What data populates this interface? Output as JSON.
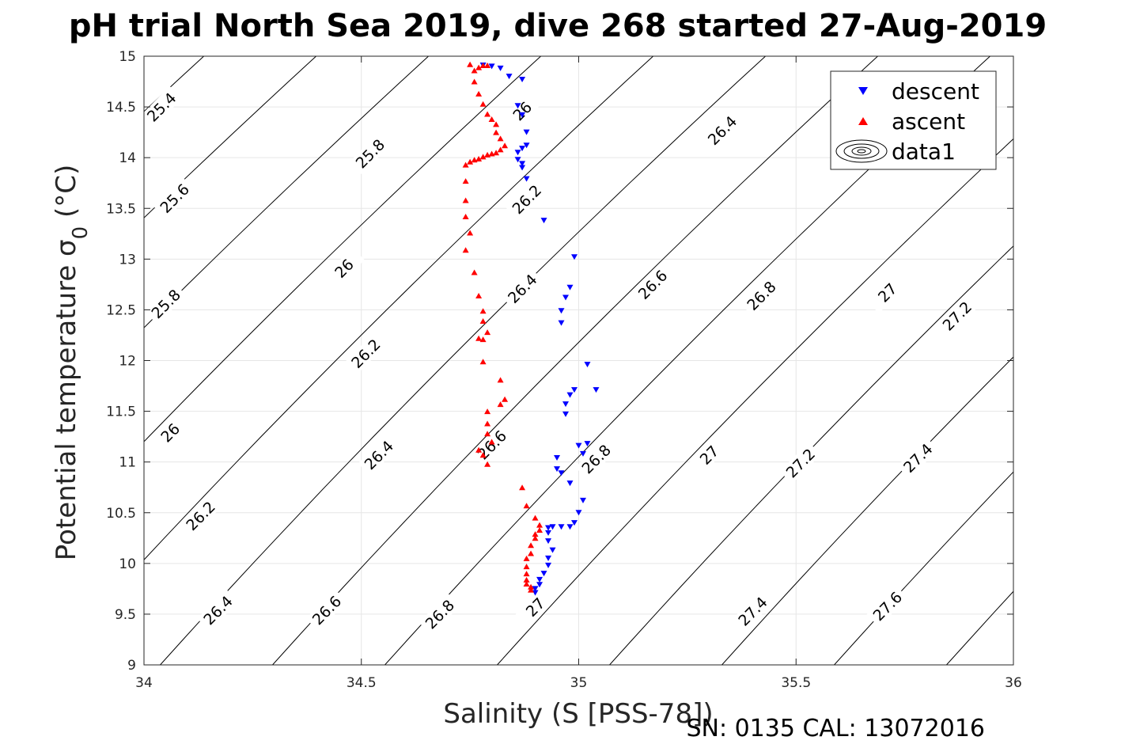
{
  "chart_data": {
    "type": "scatter",
    "title": "pH trial North Sea 2019, dive 268 started 27-Aug-2019",
    "xlabel": "Salinity (S [PSS-78])",
    "ylabel": "Potential temperature σ",
    "ylabel_sub": "0",
    "ylabel_unit": " (°C)",
    "footer": "SN: 0135  CAL: 13072016",
    "xlim": [
      34,
      36
    ],
    "ylim": [
      9,
      15
    ],
    "xticks": [
      34,
      34.5,
      35,
      35.5,
      36
    ],
    "xtick_labels": [
      "34",
      "34.5",
      "35",
      "35.5",
      "36"
    ],
    "yticks": [
      9,
      9.5,
      10,
      10.5,
      11,
      11.5,
      12,
      12.5,
      13,
      13.5,
      14,
      14.5,
      15
    ],
    "ytick_labels": [
      "9",
      "9.5",
      "10",
      "10.5",
      "11",
      "11.5",
      "12",
      "12.5",
      "13",
      "13.5",
      "14",
      "14.5",
      "15"
    ],
    "grid": true,
    "legend_position": "top-right",
    "legend": [
      "descent",
      "ascent",
      "data1"
    ],
    "series": [
      {
        "name": "descent",
        "color": "#0000ff",
        "marker": "triangle-down",
        "points": [
          [
            34.78,
            14.91
          ],
          [
            34.8,
            14.9
          ],
          [
            34.82,
            14.88
          ],
          [
            34.84,
            14.8
          ],
          [
            34.87,
            14.77
          ],
          [
            34.86,
            14.51
          ],
          [
            34.87,
            14.42
          ],
          [
            34.88,
            14.25
          ],
          [
            34.88,
            14.12
          ],
          [
            34.87,
            14.09
          ],
          [
            34.86,
            14.05
          ],
          [
            34.86,
            13.98
          ],
          [
            34.87,
            13.94
          ],
          [
            34.87,
            13.9
          ],
          [
            34.88,
            13.79
          ],
          [
            34.92,
            13.38
          ],
          [
            34.99,
            13.02
          ],
          [
            34.98,
            12.72
          ],
          [
            34.97,
            12.62
          ],
          [
            34.96,
            12.49
          ],
          [
            34.96,
            12.37
          ],
          [
            35.02,
            11.96
          ],
          [
            34.99,
            11.71
          ],
          [
            35.04,
            11.71
          ],
          [
            34.98,
            11.66
          ],
          [
            34.97,
            11.57
          ],
          [
            34.97,
            11.47
          ],
          [
            35.02,
            11.18
          ],
          [
            35.0,
            11.16
          ],
          [
            35.01,
            11.08
          ],
          [
            34.95,
            11.04
          ],
          [
            34.95,
            10.93
          ],
          [
            34.96,
            10.89
          ],
          [
            34.98,
            10.79
          ],
          [
            35.01,
            10.62
          ],
          [
            35.0,
            10.5
          ],
          [
            34.99,
            10.4
          ],
          [
            34.98,
            10.36
          ],
          [
            34.96,
            10.36
          ],
          [
            34.94,
            10.36
          ],
          [
            34.93,
            10.35
          ],
          [
            34.93,
            10.3
          ],
          [
            34.93,
            10.22
          ],
          [
            34.94,
            10.13
          ],
          [
            34.93,
            10.05
          ],
          [
            34.93,
            9.98
          ],
          [
            34.92,
            9.9
          ],
          [
            34.91,
            9.84
          ],
          [
            34.91,
            9.79
          ],
          [
            34.9,
            9.75
          ],
          [
            34.9,
            9.71
          ]
        ]
      },
      {
        "name": "ascent",
        "color": "#ff0000",
        "marker": "triangle-up",
        "points": [
          [
            34.89,
            9.74
          ],
          [
            34.89,
            9.77
          ],
          [
            34.88,
            9.8
          ],
          [
            34.88,
            9.84
          ],
          [
            34.88,
            9.9
          ],
          [
            34.88,
            9.97
          ],
          [
            34.88,
            10.05
          ],
          [
            34.89,
            10.1
          ],
          [
            34.89,
            10.18
          ],
          [
            34.9,
            10.25
          ],
          [
            34.9,
            10.29
          ],
          [
            34.91,
            10.33
          ],
          [
            34.91,
            10.38
          ],
          [
            34.9,
            10.45
          ],
          [
            34.88,
            10.57
          ],
          [
            34.87,
            10.75
          ],
          [
            34.79,
            10.98
          ],
          [
            34.78,
            11.07
          ],
          [
            34.77,
            11.12
          ],
          [
            34.8,
            11.2
          ],
          [
            34.79,
            11.28
          ],
          [
            34.79,
            11.38
          ],
          [
            34.79,
            11.5
          ],
          [
            34.82,
            11.57
          ],
          [
            34.83,
            11.62
          ],
          [
            34.82,
            11.81
          ],
          [
            34.78,
            11.99
          ],
          [
            34.78,
            12.21
          ],
          [
            34.77,
            12.22
          ],
          [
            34.79,
            12.28
          ],
          [
            34.78,
            12.39
          ],
          [
            34.78,
            12.49
          ],
          [
            34.77,
            12.64
          ],
          [
            34.76,
            12.87
          ],
          [
            34.74,
            13.09
          ],
          [
            34.75,
            13.26
          ],
          [
            34.74,
            13.42
          ],
          [
            34.74,
            13.58
          ],
          [
            34.74,
            13.77
          ],
          [
            34.74,
            13.93
          ],
          [
            34.75,
            13.96
          ],
          [
            34.76,
            13.98
          ],
          [
            34.77,
            13.99
          ],
          [
            34.78,
            14.01
          ],
          [
            34.79,
            14.03
          ],
          [
            34.8,
            14.04
          ],
          [
            34.81,
            14.05
          ],
          [
            34.82,
            14.08
          ],
          [
            34.83,
            14.12
          ],
          [
            34.82,
            14.19
          ],
          [
            34.81,
            14.25
          ],
          [
            34.81,
            14.33
          ],
          [
            34.8,
            14.38
          ],
          [
            34.79,
            14.43
          ],
          [
            34.78,
            14.53
          ],
          [
            34.77,
            14.63
          ],
          [
            34.76,
            14.75
          ],
          [
            34.76,
            14.86
          ],
          [
            34.77,
            14.89
          ],
          [
            34.78,
            14.91
          ],
          [
            34.79,
            14.91
          ],
          [
            34.75,
            14.92
          ]
        ]
      }
    ],
    "contours": {
      "levels": [
        25.4,
        25.6,
        25.8,
        26,
        26.2,
        26.4,
        26.6,
        26.8,
        27,
        27.2,
        27.4,
        27.6
      ],
      "labels": [
        {
          "text": "25.4",
          "s": 34.04,
          "t": 14.5
        },
        {
          "text": "25.8",
          "s": 34.52,
          "t": 14.04
        },
        {
          "text": "26",
          "s": 34.87,
          "t": 14.46
        },
        {
          "text": "25.6",
          "s": 34.07,
          "t": 13.6
        },
        {
          "text": "26.2",
          "s": 34.88,
          "t": 13.59
        },
        {
          "text": "26.4",
          "s": 35.33,
          "t": 14.27
        },
        {
          "text": "26",
          "s": 34.46,
          "t": 12.91
        },
        {
          "text": "25.8",
          "s": 34.05,
          "t": 12.56
        },
        {
          "text": "26.4",
          "s": 34.87,
          "t": 12.71
        },
        {
          "text": "26.6",
          "s": 35.17,
          "t": 12.75
        },
        {
          "text": "26.8",
          "s": 35.42,
          "t": 12.64
        },
        {
          "text": "27",
          "s": 35.71,
          "t": 12.67
        },
        {
          "text": "27.2",
          "s": 35.87,
          "t": 12.44
        },
        {
          "text": "26.2",
          "s": 34.51,
          "t": 12.07
        },
        {
          "text": "26",
          "s": 34.06,
          "t": 11.29
        },
        {
          "text": "26.4",
          "s": 34.54,
          "t": 11.07
        },
        {
          "text": "26.6",
          "s": 34.8,
          "t": 11.17
        },
        {
          "text": "26.8",
          "s": 35.04,
          "t": 11.03
        },
        {
          "text": "27",
          "s": 35.3,
          "t": 11.07
        },
        {
          "text": "27.2",
          "s": 35.51,
          "t": 10.99
        },
        {
          "text": "27.4",
          "s": 35.78,
          "t": 11.04
        },
        {
          "text": "26.2",
          "s": 34.13,
          "t": 10.47
        },
        {
          "text": "26.4",
          "s": 34.17,
          "t": 9.54
        },
        {
          "text": "26.6",
          "s": 34.42,
          "t": 9.54
        },
        {
          "text": "26.8",
          "s": 34.68,
          "t": 9.5
        },
        {
          "text": "27",
          "s": 34.9,
          "t": 9.57
        },
        {
          "text": "27.4",
          "s": 35.4,
          "t": 9.53
        },
        {
          "text": "27.6",
          "s": 35.71,
          "t": 9.58
        }
      ]
    }
  }
}
